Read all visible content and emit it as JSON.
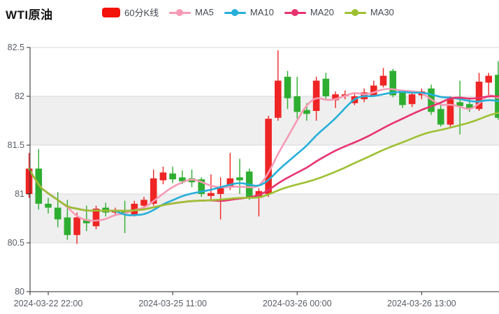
{
  "header": {
    "title": "WTI原油"
  },
  "legend": {
    "items": [
      {
        "label": "60分K线",
        "color": "#f31209",
        "marker": "rect"
      },
      {
        "label": "MA5",
        "color": "#f79ab5",
        "marker": "line-dot"
      },
      {
        "label": "MA10",
        "color": "#25afd8",
        "marker": "line-dot"
      },
      {
        "label": "MA20",
        "color": "#e8326e",
        "marker": "line-dot"
      },
      {
        "label": "MA30",
        "color": "#9dc032",
        "marker": "line-dot"
      }
    ]
  },
  "chart_data": {
    "type": "candlestick",
    "title": "WTI原油",
    "interval_label": "60分K线",
    "y_axis": {
      "min": 80,
      "max": 82.5,
      "step": 0.5,
      "labels": [
        "82.5",
        "82",
        "81.5",
        "81",
        "80.5",
        "80"
      ],
      "grid": true
    },
    "x_axis": {
      "ticks": [
        {
          "index": 2,
          "label": "2024-03-22 22:00"
        },
        {
          "index": 15,
          "label": "2024-03-25 11:00"
        },
        {
          "index": 28,
          "label": "2024-03-26 00:00"
        },
        {
          "index": 41,
          "label": "2024-03-26 13:00"
        }
      ]
    },
    "colors": {
      "up": "#ee2524",
      "down": "#2eae30",
      "grid": "#d9d9d9",
      "band": "#efefef",
      "axis": "#2a2a2a",
      "axis_label": "#585d64"
    },
    "candles": {
      "format": [
        "open",
        "close",
        "low",
        "high"
      ],
      "values": [
        [
          81.0,
          81.26,
          80.96,
          81.42
        ],
        [
          81.26,
          80.9,
          80.84,
          81.46
        ],
        [
          80.9,
          80.86,
          80.8,
          80.96
        ],
        [
          80.86,
          80.74,
          80.66,
          81.02
        ],
        [
          80.76,
          80.58,
          80.53,
          80.94
        ],
        [
          80.58,
          80.76,
          80.49,
          80.81
        ],
        [
          80.74,
          80.7,
          80.62,
          80.88
        ],
        [
          80.67,
          80.85,
          80.64,
          80.88
        ],
        [
          80.86,
          80.81,
          80.77,
          80.91
        ],
        [
          80.81,
          80.83,
          80.78,
          80.86
        ],
        [
          80.83,
          80.8,
          80.6,
          80.93
        ],
        [
          80.79,
          80.9,
          80.77,
          80.93
        ],
        [
          80.88,
          80.94,
          80.86,
          80.97
        ],
        [
          80.9,
          81.16,
          80.88,
          81.25
        ],
        [
          81.14,
          81.22,
          81.1,
          81.28
        ],
        [
          81.21,
          81.15,
          81.11,
          81.28
        ],
        [
          81.17,
          81.13,
          81.1,
          81.24
        ],
        [
          81.16,
          81.12,
          81.07,
          81.25
        ],
        [
          81.15,
          81.0,
          80.97,
          81.17
        ],
        [
          80.98,
          81.01,
          80.94,
          81.2
        ],
        [
          81.0,
          81.07,
          80.74,
          81.17
        ],
        [
          81.08,
          81.16,
          81.04,
          81.42
        ],
        [
          81.17,
          81.14,
          81.0,
          81.36
        ],
        [
          81.23,
          80.96,
          80.94,
          81.26
        ],
        [
          80.96,
          81.03,
          80.77,
          81.06
        ],
        [
          81.0,
          81.77,
          80.97,
          81.8
        ],
        [
          81.78,
          82.16,
          81.75,
          82.47
        ],
        [
          82.2,
          81.98,
          81.87,
          82.26
        ],
        [
          82.0,
          81.84,
          81.77,
          82.2
        ],
        [
          81.86,
          81.82,
          81.75,
          81.93
        ],
        [
          81.85,
          82.16,
          81.75,
          82.2
        ],
        [
          82.18,
          82.0,
          81.96,
          82.24
        ],
        [
          81.96,
          82.02,
          81.88,
          82.05
        ],
        [
          82.0,
          82.02,
          81.97,
          82.06
        ],
        [
          81.93,
          82.0,
          81.91,
          82.04
        ],
        [
          81.97,
          82.04,
          81.94,
          82.08
        ],
        [
          82.01,
          82.11,
          82.0,
          82.16
        ],
        [
          82.11,
          82.21,
          82.09,
          82.29
        ],
        [
          82.26,
          82.01,
          81.99,
          82.28
        ],
        [
          82.04,
          81.91,
          81.88,
          82.06
        ],
        [
          81.92,
          82.02,
          81.89,
          82.04
        ],
        [
          82.01,
          82.05,
          81.97,
          82.08
        ],
        [
          82.08,
          81.84,
          81.81,
          82.12
        ],
        [
          81.87,
          81.71,
          81.69,
          81.94
        ],
        [
          81.71,
          81.97,
          81.69,
          82.0
        ],
        [
          81.94,
          81.9,
          81.61,
          82.16
        ],
        [
          81.92,
          81.88,
          81.84,
          81.98
        ],
        [
          81.87,
          82.15,
          81.85,
          82.24
        ],
        [
          82.14,
          82.21,
          82.0,
          82.24
        ],
        [
          82.22,
          81.78,
          81.76,
          82.36
        ]
      ]
    },
    "ma_series": [
      {
        "name": "MA5",
        "window": 5,
        "color": "#f79ab5",
        "derived": "sma_of_close"
      },
      {
        "name": "MA10",
        "window": 10,
        "color": "#25afd8",
        "derived": "sma_of_close"
      },
      {
        "name": "MA20",
        "window": 20,
        "color": "#e8326e",
        "derived": "sma_of_close"
      },
      {
        "name": "MA30",
        "window": 30,
        "color": "#9dc032",
        "derived": "sma_of_close"
      }
    ],
    "layout_hints": {
      "banded_background": true,
      "legend_position": "top",
      "y_labels_side": "left"
    }
  }
}
